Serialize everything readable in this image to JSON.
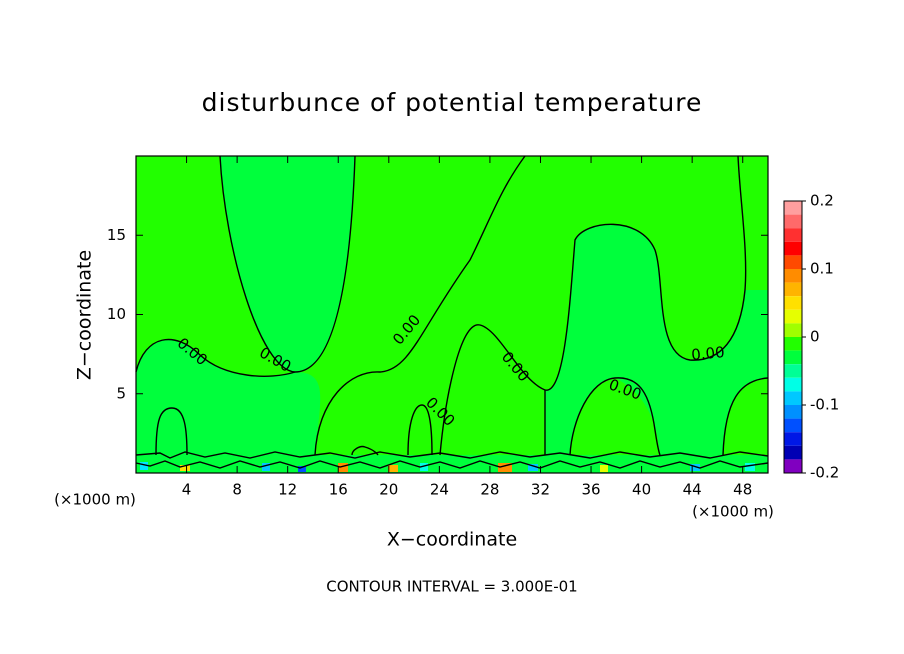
{
  "chart_data": {
    "type": "contour",
    "title": "disturbunce of potential temperature",
    "xlabel": "X−coordinate",
    "ylabel": "Z−coordinate",
    "x_unit": "(×1000 m)",
    "y_unit": "(×1000 m)",
    "footer": "CONTOUR INTERVAL = 3.000E-01",
    "xlim": [
      0,
      50
    ],
    "xticks": [
      4,
      8,
      12,
      16,
      20,
      24,
      28,
      32,
      36,
      40,
      44,
      48
    ],
    "ylim": [
      0,
      20
    ],
    "yticks": [
      5,
      10,
      15
    ],
    "contour_labels": [
      "0.00",
      "0.00",
      "0.00",
      "0.00",
      "0.00",
      "0.00",
      "0.00"
    ],
    "colorbar": {
      "range": [
        -0.2,
        0.2
      ],
      "ticks": [
        0.2,
        0.1,
        0,
        -0.1,
        -0.2
      ],
      "colors": [
        "#ff9f9f",
        "#ff6a6a",
        "#ff3030",
        "#ff0000",
        "#ff4a00",
        "#ff8c00",
        "#ffb400",
        "#ffe000",
        "#e6ff00",
        "#a0ff00",
        "#22ff00",
        "#00ff3c",
        "#00ff96",
        "#00ffe6",
        "#00c8ff",
        "#0090ff",
        "#0050ff",
        "#0018e6",
        "#0000b4",
        "#8000c0"
      ]
    }
  }
}
